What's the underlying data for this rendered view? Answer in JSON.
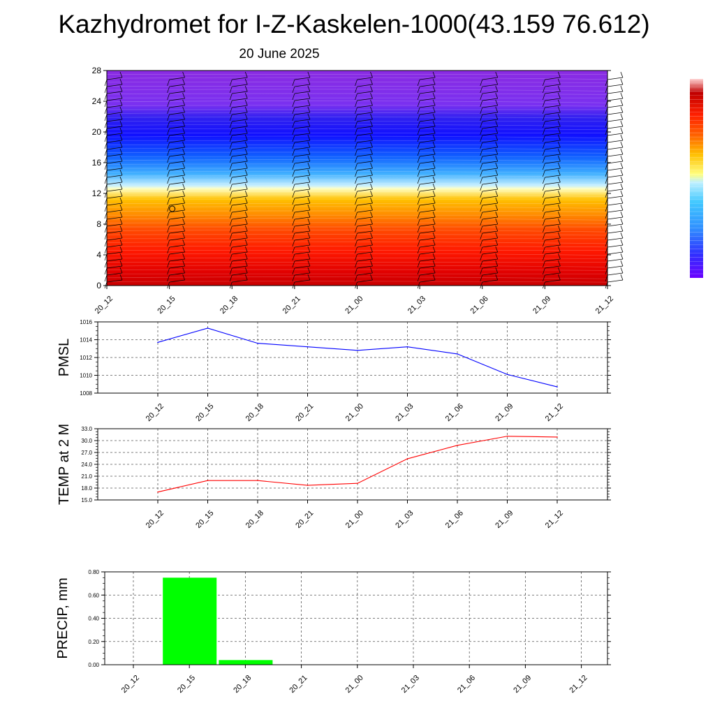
{
  "title": "Kazhydromet for I-Z-Kaskelen-1000(43.159 76.612)",
  "subtitle": "20 June 2025",
  "colors": {
    "pmsl_line": "#0000ff",
    "temp_line": "#ff0000",
    "precip_bar": "#00ff00",
    "profile_scale": [
      "#8a2be2",
      "#2020ff",
      "#1e90ff",
      "#87ceeb",
      "#ffffe0",
      "#ffd700",
      "#ff8c00",
      "#ff2000",
      "#c00000"
    ]
  },
  "chart_data": [
    {
      "type": "heatmap",
      "name": "profile",
      "x": [
        "20_12",
        "20_15",
        "20_18",
        "20_21",
        "21_00",
        "21_03",
        "21_06",
        "21_09",
        "21_12"
      ],
      "ylim": [
        0,
        28
      ],
      "yticks": [
        "0",
        "4",
        "8",
        "12",
        "16",
        "20",
        "24",
        "28"
      ],
      "xlabel": "",
      "ylabel": "",
      "color_bands": [
        {
          "from": 0,
          "to": 4,
          "color": "red"
        },
        {
          "from": 4,
          "to": 9,
          "color": "orange-red"
        },
        {
          "from": 9,
          "to": 13,
          "color": "yellow-orange"
        },
        {
          "from": 13,
          "to": 16,
          "color": "light-blue"
        },
        {
          "from": 16,
          "to": 23,
          "color": "blue"
        },
        {
          "from": 23,
          "to": 28,
          "color": "purple"
        }
      ],
      "wind_barbs": true,
      "colorbar": "right"
    },
    {
      "type": "line",
      "name": "pmsl",
      "ylabel": "PMSL",
      "categories": [
        "20_12",
        "20_15",
        "20_18",
        "20_21",
        "21_00",
        "21_03",
        "21_06",
        "21_09",
        "21_12"
      ],
      "values": [
        1013.7,
        1015.3,
        1013.6,
        1013.2,
        1012.8,
        1013.2,
        1012.4,
        1010.1,
        1008.7
      ],
      "ylim": [
        1008,
        1016
      ],
      "yticks": [
        "1008",
        "1010",
        "1012",
        "1014",
        "1016"
      ],
      "grid": true
    },
    {
      "type": "line",
      "name": "temp",
      "ylabel": "TEMP at 2 M",
      "categories": [
        "20_12",
        "20_15",
        "20_18",
        "20_21",
        "21_00",
        "21_03",
        "21_06",
        "21_09",
        "21_12"
      ],
      "values": [
        17.0,
        19.9,
        19.9,
        18.7,
        19.2,
        25.4,
        28.8,
        31.1,
        30.9
      ],
      "ylim": [
        15,
        33
      ],
      "yticks": [
        "15.0",
        "18.0",
        "21.0",
        "24.0",
        "27.0",
        "30.0",
        "33.0"
      ],
      "grid": true
    },
    {
      "type": "bar",
      "name": "precip",
      "ylabel": "PRECIP, mm",
      "categories": [
        "20_12",
        "20_15",
        "20_18",
        "20_21",
        "21_00",
        "21_03",
        "21_06",
        "21_09",
        "21_12"
      ],
      "values": [
        0,
        0.75,
        0.04,
        0,
        0,
        0,
        0,
        0,
        0
      ],
      "ylim": [
        0,
        0.8
      ],
      "yticks": [
        "0.00",
        "0.20",
        "0.40",
        "0.60",
        "0.80"
      ],
      "grid": true
    }
  ]
}
